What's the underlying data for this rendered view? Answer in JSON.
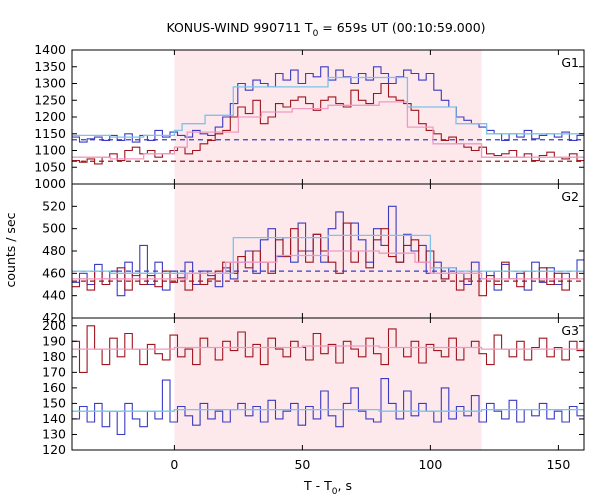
{
  "chart_data": {
    "type": "line",
    "title_main": "KONUS-WIND 990711 T",
    "title_sub": "0",
    "title_rest": " = 659s UT (00:10:59.000)",
    "xlabel_main": "T - T",
    "xlabel_sub": "0",
    "xlabel_rest": ", s",
    "ylabel": "counts / sec",
    "xlim": [
      -40,
      160
    ],
    "xticks": [
      "0",
      "50",
      "100",
      "150"
    ],
    "xtick_values": [
      0,
      50,
      100,
      150
    ],
    "shade_range": [
      0,
      120
    ],
    "step": 2.944,
    "colors": {
      "blue": "#3b3bc2",
      "red": "#a0141e",
      "lightblue": "#79c4ea",
      "pink": "#f09ac2",
      "shade": "#fde8ec"
    },
    "panels": [
      {
        "name": "G1",
        "ylim": [
          1000,
          1400
        ],
        "yticks": [
          "1000",
          "1050",
          "1100",
          "1150",
          "1200",
          "1250",
          "1300",
          "1350",
          "1400"
        ],
        "ytick_values": [
          1000,
          1050,
          1100,
          1150,
          1200,
          1250,
          1300,
          1350,
          1400
        ],
        "baselines": [
          {
            "color": "blue",
            "value": 1132
          },
          {
            "color": "red",
            "value": 1068
          }
        ],
        "series": [
          {
            "color": "blue",
            "values": [
              1140,
              1125,
              1135,
              1140,
              1130,
              1145,
              1130,
              1150,
              1125,
              1145,
              1130,
              1160,
              1140,
              1155,
              1145,
              1140,
              1160,
              1150,
              1145,
              1170,
              1200,
              1240,
              1300,
              1280,
              1310,
              1300,
              1290,
              1330,
              1310,
              1340,
              1300,
              1330,
              1320,
              1350,
              1310,
              1340,
              1320,
              1300,
              1330,
              1310,
              1350,
              1330,
              1300,
              1320,
              1340,
              1330,
              1310,
              1330,
              1280,
              1250,
              1230,
              1200,
              1190,
              1180,
              1170,
              1160,
              1150,
              1130,
              1150,
              1140,
              1160,
              1135,
              1145,
              1150,
              1140,
              1155,
              1130,
              1145,
              1140,
              1160,
              1135
            ]
          },
          {
            "color": "red",
            "values": [
              1070,
              1065,
              1075,
              1060,
              1080,
              1090,
              1070,
              1100,
              1110,
              1090,
              1100,
              1080,
              1090,
              1100,
              1110,
              1090,
              1100,
              1120,
              1130,
              1150,
              1160,
              1200,
              1230,
              1210,
              1250,
              1180,
              1200,
              1240,
              1230,
              1250,
              1260,
              1240,
              1220,
              1250,
              1260,
              1240,
              1230,
              1280,
              1250,
              1240,
              1270,
              1300,
              1260,
              1250,
              1240,
              1220,
              1180,
              1160,
              1150,
              1130,
              1140,
              1120,
              1110,
              1100,
              1110,
              1090,
              1085,
              1090,
              1100,
              1080,
              1090,
              1070,
              1085,
              1095,
              1080,
              1075,
              1090,
              1070,
              1085,
              1080,
              1090
            ]
          },
          {
            "color": "lightblue",
            "step": true,
            "points": [
              [
                -40,
                1145
              ],
              [
                -25,
                1140
              ],
              [
                -12,
                1145
              ],
              [
                0,
                1160
              ],
              [
                3,
                1180
              ],
              [
                12,
                1205
              ],
              [
                23,
                1290
              ],
              [
                46,
                1290
              ],
              [
                60,
                1318
              ],
              [
                80,
                1318
              ],
              [
                91,
                1230
              ],
              [
                110,
                1180
              ],
              [
                122,
                1150
              ],
              [
                160,
                1150
              ]
            ]
          },
          {
            "color": "pink",
            "step": true,
            "points": [
              [
                -40,
                1080
              ],
              [
                -25,
                1075
              ],
              [
                -12,
                1090
              ],
              [
                0,
                1110
              ],
              [
                5,
                1155
              ],
              [
                25,
                1200
              ],
              [
                34,
                1215
              ],
              [
                46,
                1225
              ],
              [
                60,
                1235
              ],
              [
                80,
                1245
              ],
              [
                91,
                1170
              ],
              [
                101,
                1120
              ],
              [
                120,
                1080
              ],
              [
                160,
                1080
              ]
            ]
          }
        ]
      },
      {
        "name": "G2",
        "ylim": [
          420,
          540
        ],
        "yticks": [
          "420",
          "440",
          "460",
          "480",
          "500",
          "520"
        ],
        "ytick_values": [
          420,
          440,
          460,
          480,
          500,
          520
        ],
        "baselines": [
          {
            "color": "blue",
            "value": 462
          },
          {
            "color": "red",
            "value": 453
          }
        ],
        "series": [
          {
            "color": "blue",
            "values": [
              452,
              460,
              450,
              468,
              455,
              462,
              440,
              470,
              458,
              485,
              450,
              470,
              445,
              462,
              455,
              470,
              450,
              462,
              458,
              448,
              465,
              455,
              470,
              480,
              460,
              490,
              500,
              475,
              492,
              470,
              505,
              480,
              495,
              470,
              500,
              515,
              480,
              505,
              490,
              470,
              500,
              485,
              520,
              470,
              495,
              480,
              485,
              460,
              470,
              455,
              465,
              460,
              450,
              470,
              455,
              462,
              445,
              468,
              455,
              460,
              445,
              470,
              452,
              465,
              450,
              460,
              455,
              472,
              450,
              462,
              448
            ]
          },
          {
            "color": "red",
            "values": [
              448,
              455,
              445,
              462,
              450,
              455,
              465,
              445,
              460,
              450,
              458,
              448,
              462,
              452,
              456,
              445,
              460,
              450,
              455,
              462,
              470,
              460,
              475,
              465,
              480,
              470,
              460,
              490,
              475,
              500,
              480,
              470,
              495,
              480,
              470,
              460,
              505,
              470,
              480,
              465,
              490,
              500,
              475,
              470,
              485,
              490,
              470,
              480,
              465,
              455,
              460,
              445,
              455,
              462,
              440,
              458,
              450,
              470,
              455,
              448,
              462,
              455,
              465,
              450,
              460,
              445,
              455,
              462,
              450,
              445,
              458
            ]
          },
          {
            "color": "lightblue",
            "step": true,
            "points": [
              [
                -40,
                462
              ],
              [
                -25,
                460
              ],
              [
                0,
                460
              ],
              [
                23,
                492
              ],
              [
                50,
                492
              ],
              [
                60,
                494
              ],
              [
                80,
                494
              ],
              [
                94,
                494
              ],
              [
                100,
                465
              ],
              [
                110,
                462
              ],
              [
                160,
                462
              ]
            ]
          },
          {
            "color": "pink",
            "step": true,
            "points": [
              [
                -40,
                455
              ],
              [
                0,
                455
              ],
              [
                5,
                460
              ],
              [
                20,
                470
              ],
              [
                40,
                476
              ],
              [
                60,
                480
              ],
              [
                80,
                478
              ],
              [
                94,
                470
              ],
              [
                100,
                460
              ],
              [
                120,
                455
              ],
              [
                160,
                455
              ]
            ]
          }
        ]
      },
      {
        "name": "G3",
        "ylim": [
          120,
          205
        ],
        "yticks": [
          "120",
          "130",
          "140",
          "150",
          "160",
          "170",
          "180",
          "190",
          "200"
        ],
        "ytick_values": [
          120,
          130,
          140,
          150,
          160,
          170,
          180,
          190,
          200
        ],
        "baselines": [],
        "series": [
          {
            "color": "blue",
            "values": [
              140,
              148,
              138,
              150,
              135,
              145,
              130,
              150,
              140,
              135,
              145,
              140,
              165,
              138,
              148,
              142,
              136,
              150,
              140,
              145,
              138,
              146,
              150,
              142,
              148,
              138,
              152,
              140,
              145,
              150,
              136,
              148,
              140,
              158,
              142,
              135,
              150,
              160,
              145,
              140,
              138,
              166,
              150,
              140,
              158,
              142,
              150,
              145,
              138,
              160,
              140,
              148,
              142,
              155,
              138,
              150,
              145,
              140,
              152,
              138,
              146,
              142,
              150,
              140,
              145,
              138,
              148,
              142,
              146,
              140,
              150
            ]
          },
          {
            "color": "red",
            "values": [
              190,
              170,
              200,
              185,
              175,
              192,
              180,
              195,
              185,
              175,
              188,
              182,
              178,
              194,
              180,
              185,
              175,
              192,
              186,
              178,
              190,
              184,
              196,
              180,
              188,
              175,
              192,
              185,
              180,
              190,
              186,
              178,
              195,
              182,
              188,
              176,
              190,
              185,
              180,
              192,
              182,
              175,
              198,
              186,
              180,
              190,
              176,
              188,
              184,
              180,
              192,
              178,
              186,
              190,
              182,
              175,
              194,
              185,
              180,
              190,
              178,
              186,
              192,
              180,
              186,
              178,
              190,
              184,
              180,
              192,
              185
            ]
          },
          {
            "color": "lightblue",
            "step": true,
            "points": [
              [
                -40,
                145
              ],
              [
                -10,
                145
              ],
              [
                0,
                146
              ],
              [
                50,
                146
              ],
              [
                80,
                145
              ],
              [
                120,
                146
              ],
              [
                160,
                145
              ]
            ]
          },
          {
            "color": "pink",
            "step": true,
            "points": [
              [
                -40,
                185
              ],
              [
                -10,
                185
              ],
              [
                0,
                186
              ],
              [
                50,
                187
              ],
              [
                80,
                186
              ],
              [
                120,
                185
              ],
              [
                160,
                185
              ]
            ]
          }
        ]
      }
    ]
  }
}
